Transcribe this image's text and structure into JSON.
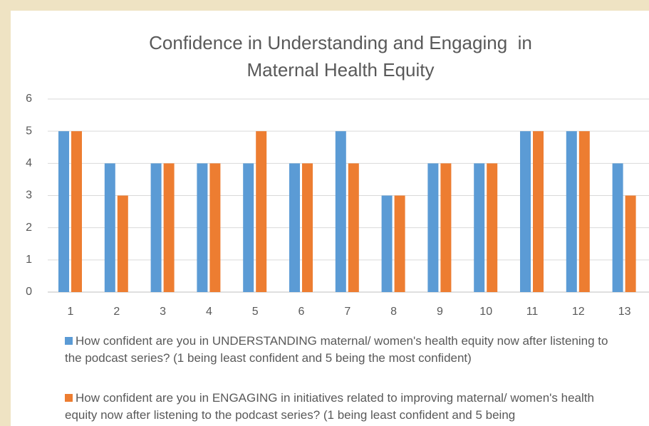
{
  "chart_data": {
    "type": "bar",
    "title": "Confidence in Understanding and Engaging  in Maternal Health Equity",
    "categories": [
      "1",
      "2",
      "3",
      "4",
      "5",
      "6",
      "7",
      "8",
      "9",
      "10",
      "11",
      "12",
      "13"
    ],
    "series": [
      {
        "name": "How confident are you in UNDERSTANDING maternal/ women's health equity now after listening to the podcast series? (1 being least confident and 5 being the most confident)",
        "color": "#5b9bd5",
        "values": [
          5,
          4,
          4,
          4,
          4,
          4,
          5,
          3,
          4,
          4,
          5,
          5,
          4
        ]
      },
      {
        "name": "How confident are you in ENGAGING in initiatives related to improving maternal/ women's health equity now after listening to the podcast series? (1 being least confident and 5 being",
        "color": "#ed7d31",
        "values": [
          5,
          3,
          4,
          4,
          5,
          4,
          4,
          3,
          4,
          4,
          5,
          5,
          3
        ]
      }
    ],
    "ylim": [
      0,
      6
    ],
    "yticks": [
      0,
      1,
      2,
      3,
      4,
      5,
      6
    ],
    "grid": true,
    "legend": "bottom"
  }
}
